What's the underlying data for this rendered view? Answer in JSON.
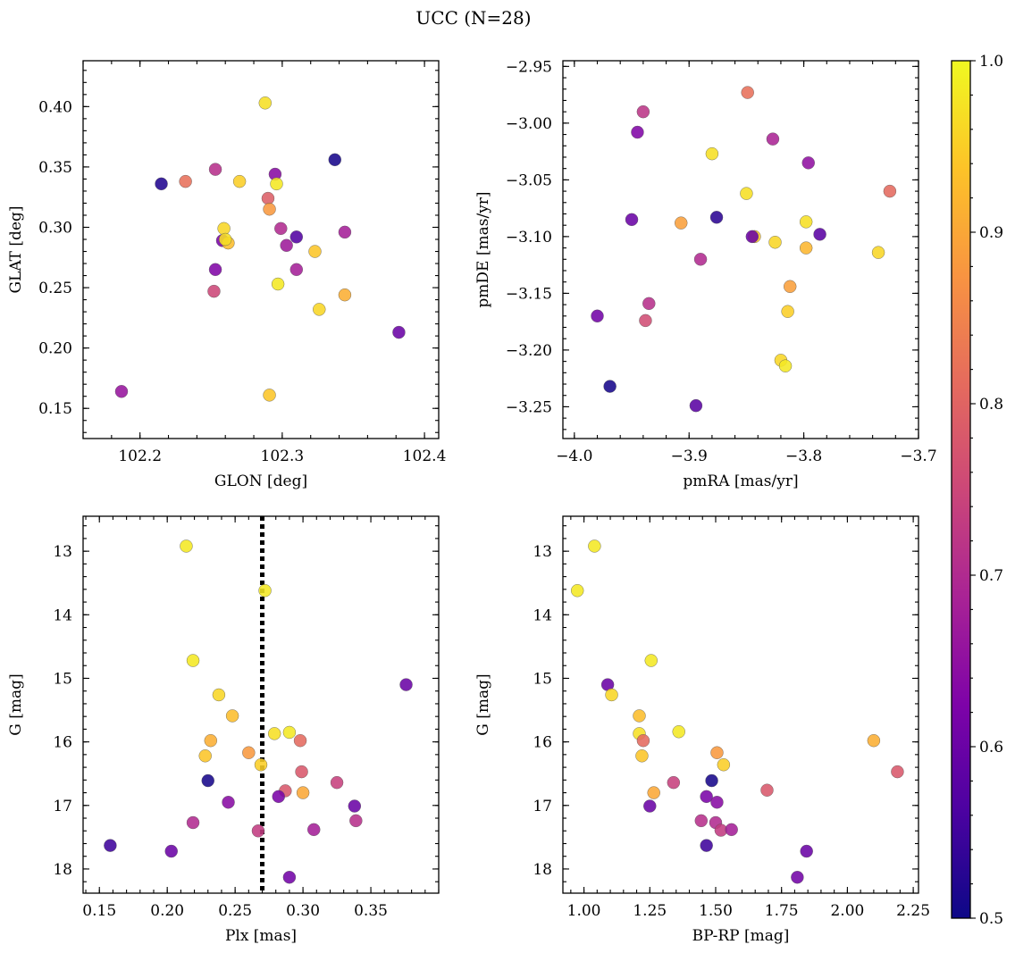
{
  "figure": {
    "title": "UCC (N=28)",
    "colorbar": {
      "min": 0.5,
      "max": 1.0,
      "ticks": [
        0.5,
        0.6,
        0.7,
        0.8,
        0.9,
        1.0
      ],
      "tick_labels": [
        "0.5",
        "0.6",
        "0.7",
        "0.8",
        "0.9",
        "1.0"
      ],
      "colormap": "plasma"
    }
  },
  "chart_data": [
    {
      "type": "scatter",
      "panel": "top-left",
      "xlabel": "GLON [deg]",
      "ylabel": "GLAT [deg]",
      "xlim": [
        102.16,
        102.41
      ],
      "ylim": [
        0.125,
        0.438
      ],
      "y_inverted": false,
      "xticks": [
        102.2,
        102.3,
        102.4
      ],
      "xtick_labels": [
        "102.2",
        "102.3",
        "102.4"
      ],
      "yticks": [
        0.15,
        0.2,
        0.25,
        0.3,
        0.35,
        0.4
      ],
      "ytick_labels": [
        "0.15",
        "0.20",
        "0.25",
        "0.30",
        "0.35",
        "0.40"
      ],
      "points": [
        {
          "x": 102.288,
          "y": 0.403,
          "c": 0.97
        },
        {
          "x": 102.337,
          "y": 0.356,
          "c": 0.51
        },
        {
          "x": 102.253,
          "y": 0.348,
          "c": 0.71
        },
        {
          "x": 102.295,
          "y": 0.344,
          "c": 0.64
        },
        {
          "x": 102.215,
          "y": 0.336,
          "c": 0.52
        },
        {
          "x": 102.232,
          "y": 0.338,
          "c": 0.82
        },
        {
          "x": 102.27,
          "y": 0.338,
          "c": 0.95
        },
        {
          "x": 102.296,
          "y": 0.336,
          "c": 0.98
        },
        {
          "x": 102.29,
          "y": 0.324,
          "c": 0.79
        },
        {
          "x": 102.291,
          "y": 0.315,
          "c": 0.88
        },
        {
          "x": 102.299,
          "y": 0.299,
          "c": 0.7
        },
        {
          "x": 102.344,
          "y": 0.296,
          "c": 0.68
        },
        {
          "x": 102.259,
          "y": 0.299,
          "c": 0.96
        },
        {
          "x": 102.31,
          "y": 0.292,
          "c": 0.57
        },
        {
          "x": 102.258,
          "y": 0.289,
          "c": 0.62
        },
        {
          "x": 102.262,
          "y": 0.287,
          "c": 0.93
        },
        {
          "x": 102.26,
          "y": 0.29,
          "c": 0.97
        },
        {
          "x": 102.303,
          "y": 0.285,
          "c": 0.67
        },
        {
          "x": 102.323,
          "y": 0.28,
          "c": 0.94
        },
        {
          "x": 102.253,
          "y": 0.265,
          "c": 0.63
        },
        {
          "x": 102.31,
          "y": 0.265,
          "c": 0.68
        },
        {
          "x": 102.297,
          "y": 0.253,
          "c": 0.98
        },
        {
          "x": 102.252,
          "y": 0.247,
          "c": 0.75
        },
        {
          "x": 102.344,
          "y": 0.244,
          "c": 0.91
        },
        {
          "x": 102.326,
          "y": 0.232,
          "c": 0.96
        },
        {
          "x": 102.382,
          "y": 0.213,
          "c": 0.6
        },
        {
          "x": 102.187,
          "y": 0.164,
          "c": 0.66
        },
        {
          "x": 102.291,
          "y": 0.161,
          "c": 0.94
        }
      ]
    },
    {
      "type": "scatter",
      "panel": "top-right",
      "xlabel": "pmRA [mas/yr]",
      "ylabel": "pmDE [mas/yr]",
      "xlim": [
        -4.01,
        -3.7
      ],
      "ylim": [
        -3.278,
        -2.945
      ],
      "y_inverted": false,
      "xticks": [
        -4.0,
        -3.9,
        -3.8,
        -3.7
      ],
      "xtick_labels": [
        "−4.0",
        "−3.9",
        "−3.8",
        "−3.7"
      ],
      "yticks": [
        -3.25,
        -3.2,
        -3.15,
        -3.1,
        -3.05,
        -3.0,
        -2.95
      ],
      "ytick_labels": [
        "−3.25",
        "−3.20",
        "−3.15",
        "−3.10",
        "−3.05",
        "−3.00",
        "−2.95"
      ],
      "points": [
        {
          "x": -3.849,
          "y": -2.973,
          "c": 0.82
        },
        {
          "x": -3.94,
          "y": -2.99,
          "c": 0.72
        },
        {
          "x": -3.945,
          "y": -3.008,
          "c": 0.63
        },
        {
          "x": -3.827,
          "y": -3.014,
          "c": 0.69
        },
        {
          "x": -3.796,
          "y": -3.035,
          "c": 0.65
        },
        {
          "x": -3.88,
          "y": -3.027,
          "c": 0.97
        },
        {
          "x": -3.725,
          "y": -3.06,
          "c": 0.81
        },
        {
          "x": -3.85,
          "y": -3.062,
          "c": 0.97
        },
        {
          "x": -3.876,
          "y": -3.083,
          "c": 0.53
        },
        {
          "x": -3.95,
          "y": -3.085,
          "c": 0.6
        },
        {
          "x": -3.907,
          "y": -3.088,
          "c": 0.89
        },
        {
          "x": -3.798,
          "y": -3.087,
          "c": 0.97
        },
        {
          "x": -3.843,
          "y": -3.1,
          "c": 0.94
        },
        {
          "x": -3.845,
          "y": -3.1,
          "c": 0.6
        },
        {
          "x": -3.786,
          "y": -3.098,
          "c": 0.58
        },
        {
          "x": -3.825,
          "y": -3.105,
          "c": 0.96
        },
        {
          "x": -3.798,
          "y": -3.11,
          "c": 0.92
        },
        {
          "x": -3.735,
          "y": -3.114,
          "c": 0.96
        },
        {
          "x": -3.89,
          "y": -3.12,
          "c": 0.7
        },
        {
          "x": -3.812,
          "y": -3.144,
          "c": 0.89
        },
        {
          "x": -3.935,
          "y": -3.159,
          "c": 0.71
        },
        {
          "x": -3.938,
          "y": -3.174,
          "c": 0.76
        },
        {
          "x": -3.98,
          "y": -3.17,
          "c": 0.61
        },
        {
          "x": -3.814,
          "y": -3.166,
          "c": 0.95
        },
        {
          "x": -3.82,
          "y": -3.209,
          "c": 0.96
        },
        {
          "x": -3.816,
          "y": -3.214,
          "c": 0.98
        },
        {
          "x": -3.969,
          "y": -3.232,
          "c": 0.51
        },
        {
          "x": -3.894,
          "y": -3.249,
          "c": 0.58
        }
      ]
    },
    {
      "type": "scatter",
      "panel": "bottom-left",
      "xlabel": "Plx [mas]",
      "ylabel": "G [mag]",
      "xlim": [
        0.138,
        0.4
      ],
      "ylim": [
        12.45,
        18.38
      ],
      "y_inverted": true,
      "vline": {
        "x": 0.27,
        "style": "dotted"
      },
      "xticks": [
        0.15,
        0.2,
        0.25,
        0.3,
        0.35
      ],
      "xtick_labels": [
        "0.15",
        "0.20",
        "0.25",
        "0.30",
        "0.35"
      ],
      "yticks": [
        13,
        14,
        15,
        16,
        17,
        18
      ],
      "ytick_labels": [
        "13",
        "14",
        "15",
        "16",
        "17",
        "18"
      ],
      "points": [
        {
          "x": 0.214,
          "y": 12.92,
          "c": 0.98
        },
        {
          "x": 0.272,
          "y": 13.62,
          "c": 0.98
        },
        {
          "x": 0.219,
          "y": 14.72,
          "c": 0.98
        },
        {
          "x": 0.376,
          "y": 15.1,
          "c": 0.6
        },
        {
          "x": 0.238,
          "y": 15.26,
          "c": 0.96
        },
        {
          "x": 0.248,
          "y": 15.59,
          "c": 0.93
        },
        {
          "x": 0.29,
          "y": 15.85,
          "c": 0.98
        },
        {
          "x": 0.279,
          "y": 15.87,
          "c": 0.97
        },
        {
          "x": 0.232,
          "y": 15.98,
          "c": 0.91
        },
        {
          "x": 0.298,
          "y": 15.98,
          "c": 0.81
        },
        {
          "x": 0.26,
          "y": 16.17,
          "c": 0.88
        },
        {
          "x": 0.228,
          "y": 16.22,
          "c": 0.94
        },
        {
          "x": 0.269,
          "y": 16.36,
          "c": 0.95
        },
        {
          "x": 0.299,
          "y": 16.47,
          "c": 0.78
        },
        {
          "x": 0.23,
          "y": 16.61,
          "c": 0.51
        },
        {
          "x": 0.325,
          "y": 16.64,
          "c": 0.74
        },
        {
          "x": 0.287,
          "y": 16.77,
          "c": 0.78
        },
        {
          "x": 0.3,
          "y": 16.8,
          "c": 0.9
        },
        {
          "x": 0.282,
          "y": 16.86,
          "c": 0.62
        },
        {
          "x": 0.245,
          "y": 16.95,
          "c": 0.64
        },
        {
          "x": 0.338,
          "y": 17.01,
          "c": 0.6
        },
        {
          "x": 0.339,
          "y": 17.24,
          "c": 0.71
        },
        {
          "x": 0.219,
          "y": 17.27,
          "c": 0.7
        },
        {
          "x": 0.267,
          "y": 17.4,
          "c": 0.73
        },
        {
          "x": 0.308,
          "y": 17.38,
          "c": 0.68
        },
        {
          "x": 0.158,
          "y": 17.63,
          "c": 0.55
        },
        {
          "x": 0.203,
          "y": 17.72,
          "c": 0.6
        },
        {
          "x": 0.29,
          "y": 18.13,
          "c": 0.61
        }
      ]
    },
    {
      "type": "scatter",
      "panel": "bottom-right",
      "xlabel": "BP-RP [mag]",
      "ylabel": "G [mag]",
      "xlim": [
        0.92,
        2.27
      ],
      "ylim": [
        12.45,
        18.38
      ],
      "y_inverted": true,
      "xticks": [
        1.0,
        1.25,
        1.5,
        1.75,
        2.0,
        2.25
      ],
      "xtick_labels": [
        "1.00",
        "1.25",
        "1.50",
        "1.75",
        "2.00",
        "2.25"
      ],
      "yticks": [
        13,
        14,
        15,
        16,
        17,
        18
      ],
      "ytick_labels": [
        "13",
        "14",
        "15",
        "16",
        "17",
        "18"
      ],
      "points": [
        {
          "x": 1.04,
          "y": 12.92,
          "c": 0.98
        },
        {
          "x": 0.975,
          "y": 13.62,
          "c": 0.98
        },
        {
          "x": 1.255,
          "y": 14.72,
          "c": 0.98
        },
        {
          "x": 1.09,
          "y": 15.1,
          "c": 0.6
        },
        {
          "x": 1.105,
          "y": 15.26,
          "c": 0.96
        },
        {
          "x": 1.21,
          "y": 15.59,
          "c": 0.93
        },
        {
          "x": 1.36,
          "y": 15.84,
          "c": 0.98
        },
        {
          "x": 1.21,
          "y": 15.87,
          "c": 0.97
        },
        {
          "x": 1.225,
          "y": 15.98,
          "c": 0.81
        },
        {
          "x": 2.1,
          "y": 15.98,
          "c": 0.91
        },
        {
          "x": 1.505,
          "y": 16.17,
          "c": 0.88
        },
        {
          "x": 1.22,
          "y": 16.22,
          "c": 0.94
        },
        {
          "x": 1.53,
          "y": 16.36,
          "c": 0.95
        },
        {
          "x": 2.19,
          "y": 16.47,
          "c": 0.78
        },
        {
          "x": 1.485,
          "y": 16.61,
          "c": 0.51
        },
        {
          "x": 1.34,
          "y": 16.64,
          "c": 0.74
        },
        {
          "x": 1.695,
          "y": 16.76,
          "c": 0.78
        },
        {
          "x": 1.265,
          "y": 16.8,
          "c": 0.9
        },
        {
          "x": 1.465,
          "y": 16.86,
          "c": 0.62
        },
        {
          "x": 1.505,
          "y": 16.95,
          "c": 0.64
        },
        {
          "x": 1.25,
          "y": 17.01,
          "c": 0.6
        },
        {
          "x": 1.445,
          "y": 17.24,
          "c": 0.71
        },
        {
          "x": 1.5,
          "y": 17.27,
          "c": 0.7
        },
        {
          "x": 1.52,
          "y": 17.39,
          "c": 0.73
        },
        {
          "x": 1.56,
          "y": 17.38,
          "c": 0.68
        },
        {
          "x": 1.465,
          "y": 17.63,
          "c": 0.55
        },
        {
          "x": 1.845,
          "y": 17.72,
          "c": 0.6
        },
        {
          "x": 1.81,
          "y": 18.13,
          "c": 0.61
        }
      ]
    }
  ]
}
